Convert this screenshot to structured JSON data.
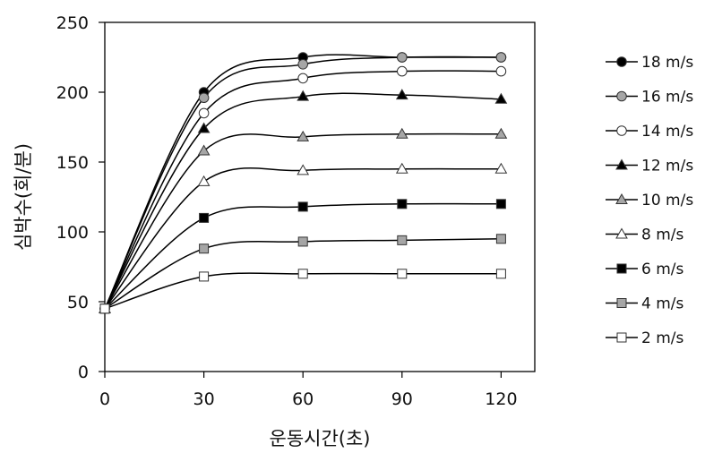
{
  "chart_data": {
    "type": "line",
    "xlabel": "운동시간(초)",
    "ylabel": "심박수(회/분)",
    "x": [
      0,
      30,
      60,
      90,
      120
    ],
    "xticks": [
      "0",
      "30",
      "60",
      "90",
      "120"
    ],
    "yticks": [
      "0",
      "50",
      "100",
      "150",
      "200",
      "250"
    ],
    "xlim": [
      0,
      130
    ],
    "ylim": [
      0,
      250
    ],
    "grid": false,
    "legend_position": "right",
    "series": [
      {
        "name": "18 m/s",
        "marker": "circle",
        "fill": "#000000",
        "values": [
          45,
          200,
          225,
          225,
          225
        ]
      },
      {
        "name": "16 m/s",
        "marker": "circle",
        "fill": "#a6a6a6",
        "values": [
          45,
          196,
          220,
          225,
          225
        ]
      },
      {
        "name": "14 m/s",
        "marker": "circle",
        "fill": "#ffffff",
        "values": [
          45,
          185,
          210,
          215,
          215
        ]
      },
      {
        "name": "12 m/s",
        "marker": "triangle",
        "fill": "#000000",
        "values": [
          45,
          174,
          197,
          198,
          195
        ]
      },
      {
        "name": "10 m/s",
        "marker": "triangle",
        "fill": "#a6a6a6",
        "values": [
          45,
          158,
          168,
          170,
          170
        ]
      },
      {
        "name": "8 m/s",
        "marker": "triangle",
        "fill": "#ffffff",
        "values": [
          45,
          136,
          144,
          145,
          145
        ]
      },
      {
        "name": "6 m/s",
        "marker": "square",
        "fill": "#000000",
        "values": [
          45,
          110,
          118,
          120,
          120
        ]
      },
      {
        "name": "4 m/s",
        "marker": "square",
        "fill": "#a6a6a6",
        "values": [
          45,
          88,
          93,
          94,
          95
        ]
      },
      {
        "name": "2 m/s",
        "marker": "square",
        "fill": "#ffffff",
        "values": [
          45,
          68,
          70,
          70,
          70
        ]
      }
    ]
  }
}
